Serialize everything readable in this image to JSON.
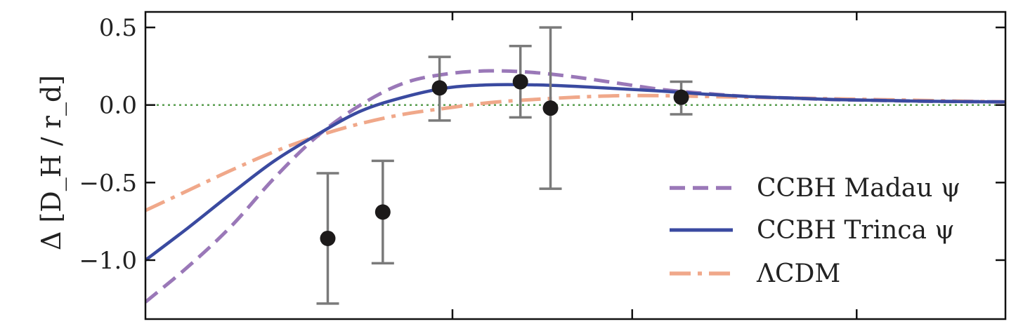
{
  "chart_data": {
    "type": "line",
    "ylabel": "Δ [D_H / r_d]",
    "ylim": [
      -1.38,
      0.6
    ],
    "xlim": [
      0,
      1
    ],
    "grid": false,
    "legend_placement": "lower-right",
    "y_ticks": [
      0.5,
      0.0,
      -0.5,
      -1.0
    ],
    "y_tick_labels": [
      "0.5",
      "0.0",
      "−0.5",
      "−1.0"
    ],
    "x_ticks": [
      0.357,
      0.566,
      0.827
    ],
    "reference_line": {
      "y": 0.0,
      "color": "#5a9e50"
    },
    "series": [
      {
        "name": "CCBH Madau ψ",
        "style": "dashed",
        "color": "#9a78b8",
        "x": [
          0.0,
          0.05,
          0.1,
          0.15,
          0.2,
          0.25,
          0.3,
          0.35,
          0.4,
          0.45,
          0.5,
          0.55,
          0.6,
          0.65,
          0.7,
          0.75,
          0.8,
          0.85,
          0.9,
          0.95,
          1.0
        ],
        "y": [
          -1.27,
          -1.04,
          -0.78,
          -0.47,
          -0.2,
          0.0,
          0.14,
          0.2,
          0.22,
          0.21,
          0.18,
          0.14,
          0.1,
          0.075,
          0.055,
          0.045,
          0.035,
          0.03,
          0.025,
          0.022,
          0.02
        ]
      },
      {
        "name": "CCBH Trinca ψ",
        "style": "solid",
        "color": "#3a4aa0",
        "x": [
          0.0,
          0.05,
          0.1,
          0.15,
          0.2,
          0.25,
          0.3,
          0.35,
          0.4,
          0.45,
          0.5,
          0.55,
          0.6,
          0.65,
          0.7,
          0.75,
          0.8,
          0.85,
          0.9,
          0.95,
          1.0
        ],
        "y": [
          -1.0,
          -0.79,
          -0.57,
          -0.36,
          -0.19,
          -0.04,
          0.05,
          0.11,
          0.13,
          0.13,
          0.12,
          0.105,
          0.09,
          0.07,
          0.055,
          0.045,
          0.035,
          0.03,
          0.025,
          0.022,
          0.02
        ]
      },
      {
        "name": "ΛCDM",
        "style": "dashdot",
        "color": "#f0a88a",
        "x": [
          0.0,
          0.05,
          0.1,
          0.15,
          0.2,
          0.25,
          0.3,
          0.35,
          0.4,
          0.45,
          0.5,
          0.55,
          0.6,
          0.65,
          0.7,
          0.75,
          0.8,
          0.85,
          0.9,
          0.95,
          1.0
        ],
        "y": [
          -0.68,
          -0.55,
          -0.42,
          -0.3,
          -0.2,
          -0.12,
          -0.06,
          -0.02,
          0.015,
          0.035,
          0.05,
          0.06,
          0.06,
          0.055,
          0.05,
          0.045,
          0.04,
          0.035,
          0.03,
          0.025,
          0.02
        ]
      }
    ],
    "data_points": [
      {
        "x": 0.212,
        "y": -0.86,
        "err_low": 0.42,
        "err_high": 0.42
      },
      {
        "x": 0.276,
        "y": -0.69,
        "err_low": 0.33,
        "err_high": 0.33
      },
      {
        "x": 0.342,
        "y": 0.11,
        "err_low": 0.21,
        "err_high": 0.2
      },
      {
        "x": 0.436,
        "y": 0.15,
        "err_low": 0.23,
        "err_high": 0.23
      },
      {
        "x": 0.471,
        "y": -0.02,
        "err_low": 0.52,
        "err_high": 0.52
      },
      {
        "x": 0.623,
        "y": 0.05,
        "err_low": 0.11,
        "err_high": 0.1
      }
    ]
  }
}
